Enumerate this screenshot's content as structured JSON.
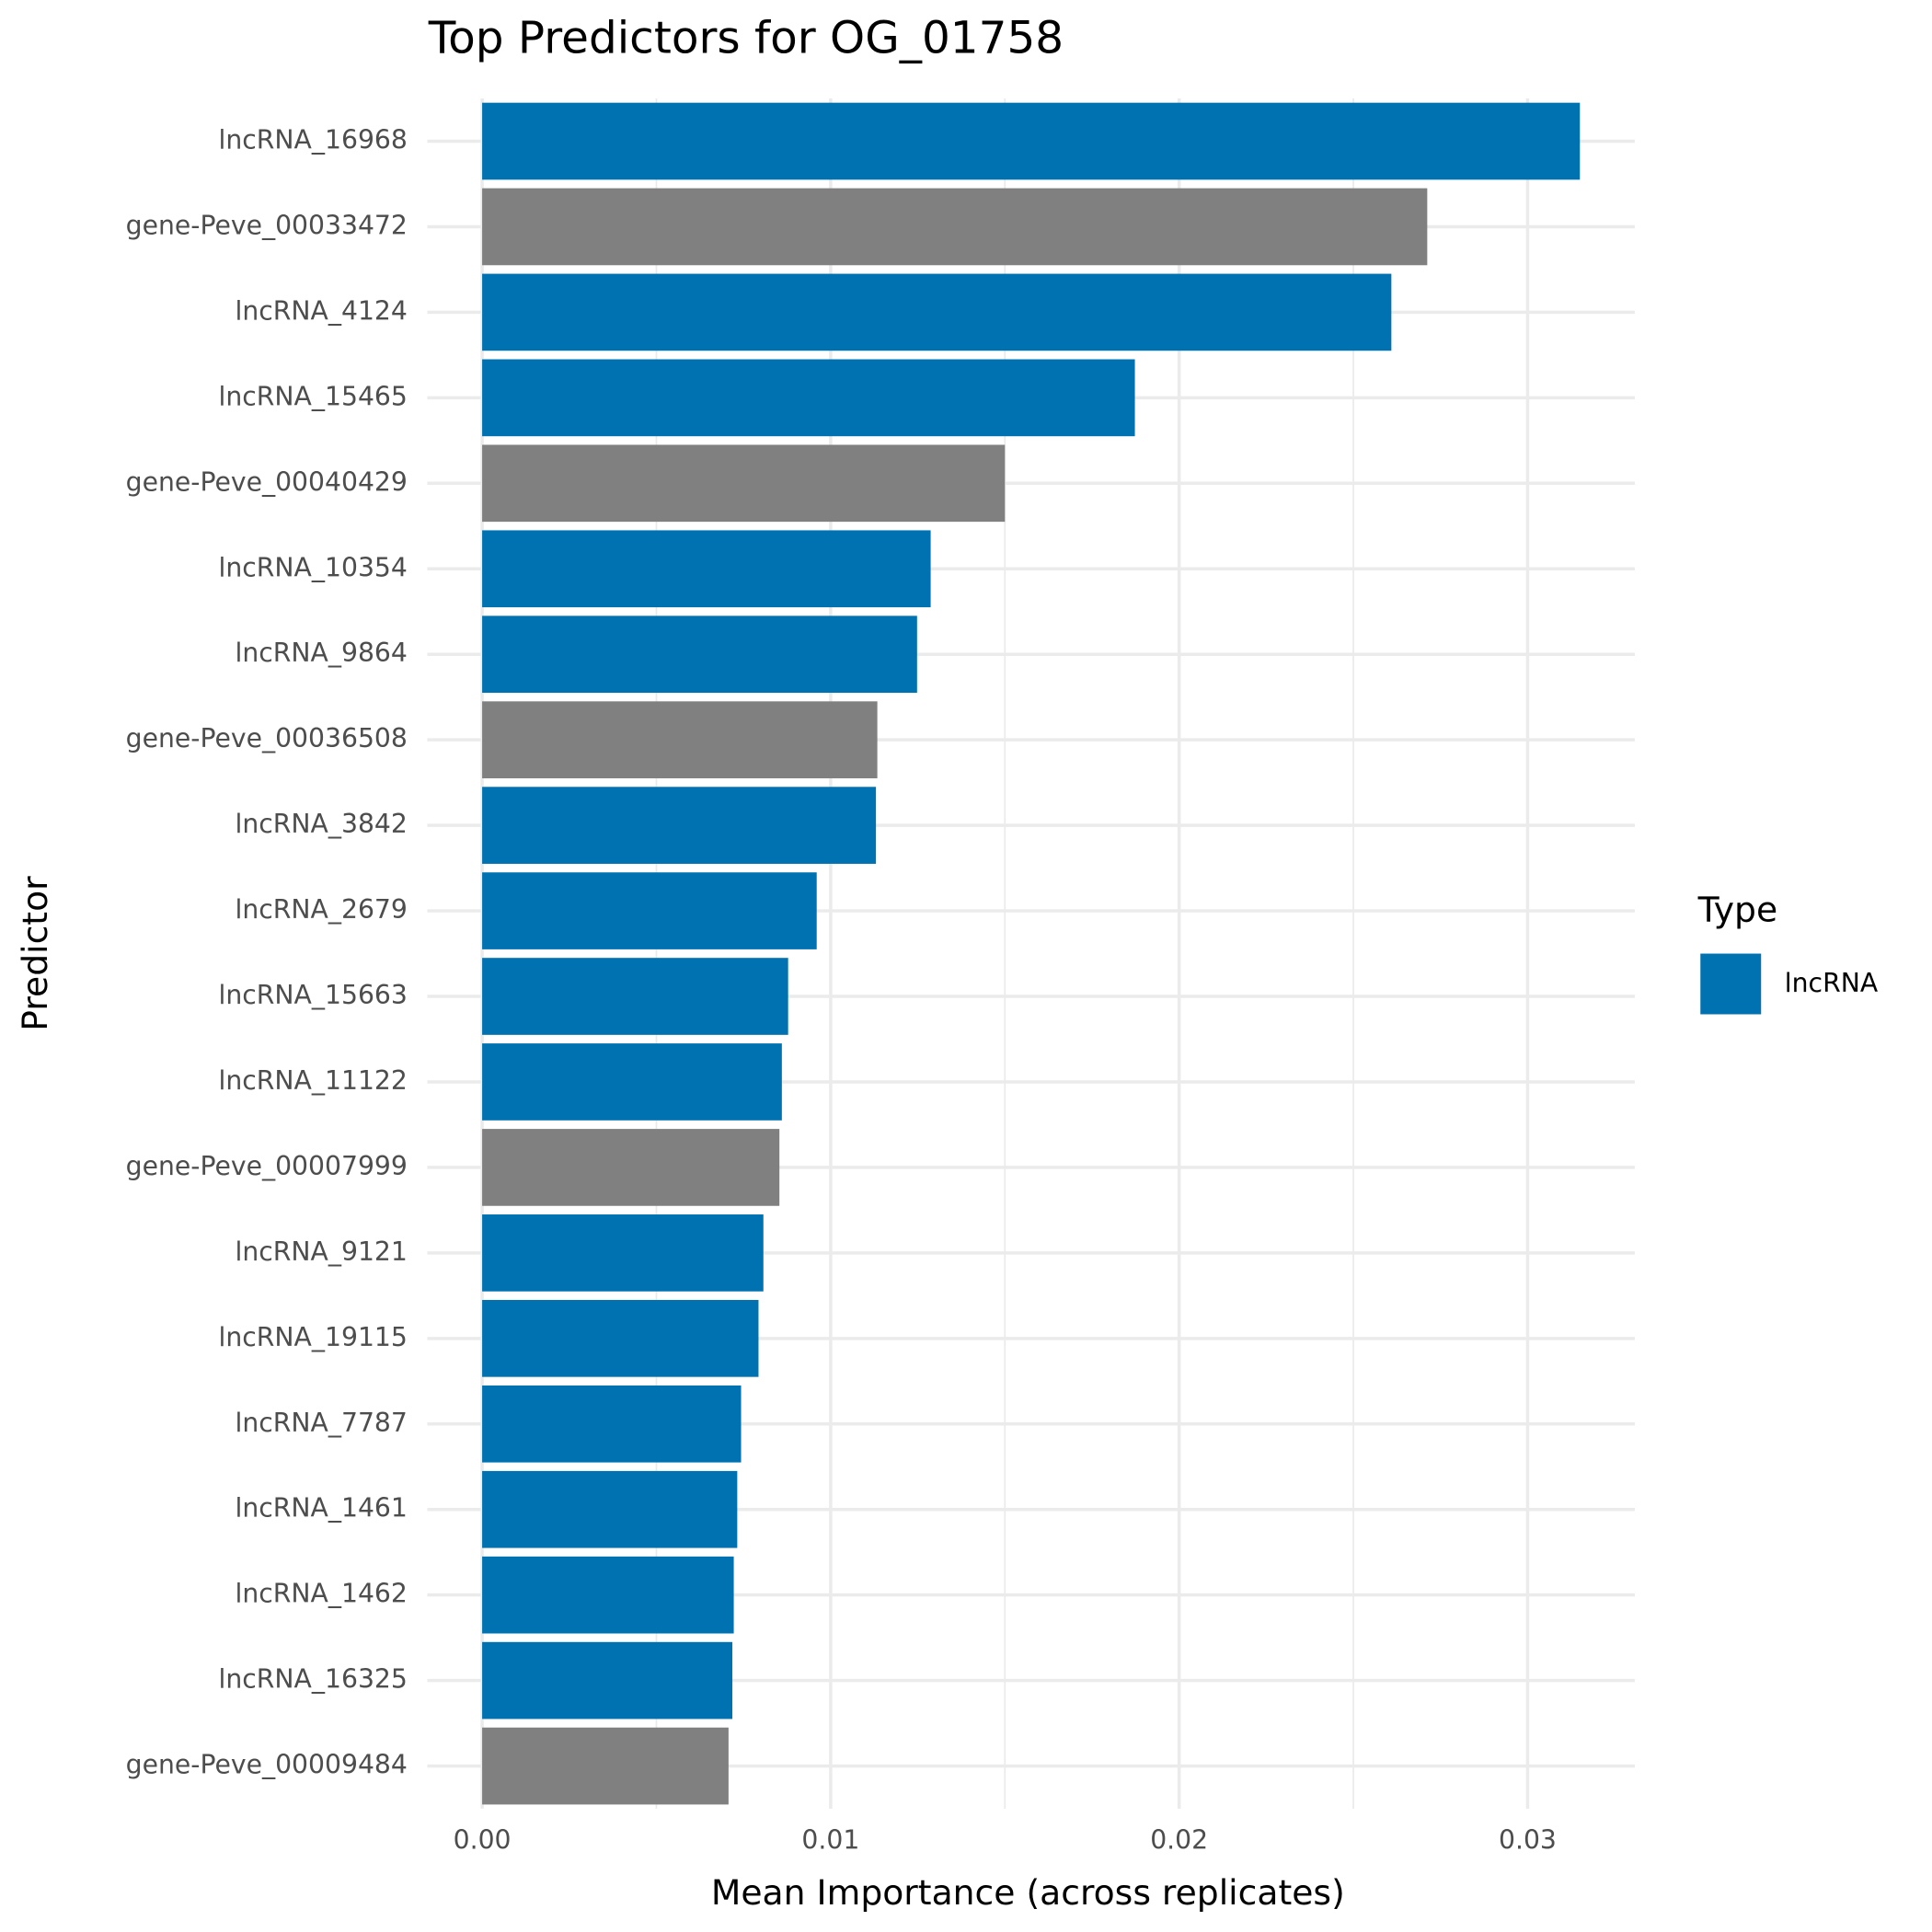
{
  "chart_data": {
    "type": "hbar",
    "title": "Top Predictors for OG_01758",
    "x_label": "Mean Importance (across replicates)",
    "y_label": "Predictor",
    "categories": [
      "lncRNA_16968",
      "gene-Peve_00033472",
      "lncRNA_4124",
      "lncRNA_15465",
      "gene-Peve_00040429",
      "lncRNA_10354",
      "lncRNA_9864",
      "gene-Peve_00036508",
      "lncRNA_3842",
      "lncRNA_2679",
      "lncRNA_15663",
      "lncRNA_11122",
      "gene-Peve_00007999",
      "lncRNA_9121",
      "lncRNA_19115",
      "lncRNA_7787",
      "lncRNA_1461",
      "lncRNA_1462",
      "lncRNA_16325",
      "gene-Peve_00009484"
    ],
    "values": [
      0.0315,
      0.02712,
      0.02609,
      0.01873,
      0.015,
      0.01287,
      0.01248,
      0.01134,
      0.0113,
      0.0096,
      0.00878,
      0.0086,
      0.00853,
      0.00807,
      0.00793,
      0.00743,
      0.00732,
      0.00722,
      0.00718,
      0.00707
    ],
    "colors": [
      "#0072B2",
      "#808080",
      "#0072B2",
      "#0072B2",
      "#808080",
      "#0072B2",
      "#0072B2",
      "#808080",
      "#0072B2",
      "#0072B2",
      "#0072B2",
      "#0072B2",
      "#808080",
      "#0072B2",
      "#0072B2",
      "#0072B2",
      "#0072B2",
      "#0072B2",
      "#0072B2",
      "#808080"
    ],
    "xlim": [
      -0.001575,
      0.033075
    ],
    "xticks": [
      {
        "value": 0,
        "label": "0.00"
      },
      {
        "value": 0.01,
        "label": "0.01"
      },
      {
        "value": 0.02,
        "label": "0.02"
      },
      {
        "value": 0.03,
        "label": "0.03"
      }
    ],
    "minor_xticks": [
      0.005,
      0.015,
      0.025
    ],
    "grid": true,
    "legend": {
      "title": "Type",
      "position": "right",
      "entries": [
        {
          "name": "lncRNA",
          "color": "#0072B2"
        }
      ]
    }
  }
}
